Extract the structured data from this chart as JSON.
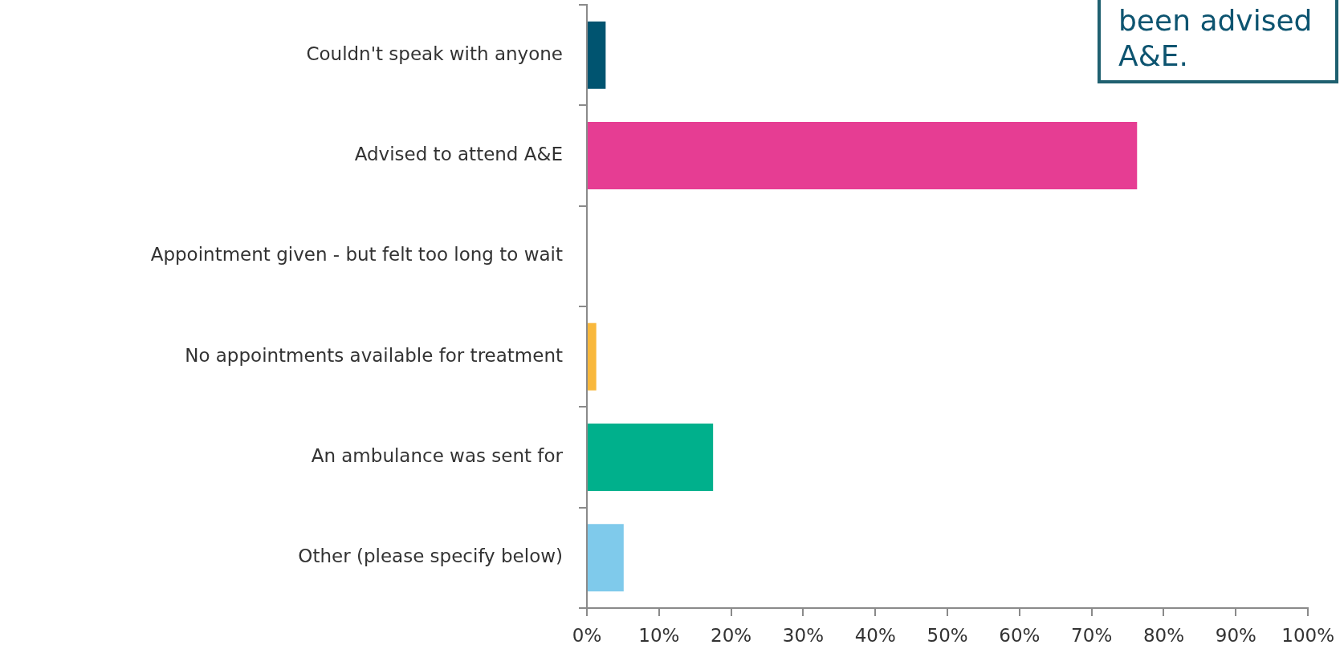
{
  "chart_data": {
    "type": "bar",
    "orientation": "horizontal",
    "categories": [
      "Couldn't speak with anyone",
      "Advised to attend A&E",
      "Appointment given - but felt too long to wait",
      "No appointments available for treatment",
      "An ambulance was sent for",
      "Other (please specify below)"
    ],
    "values": [
      2.6,
      76.3,
      0,
      1.3,
      17.5,
      5.1
    ],
    "colors": [
      "#005470",
      "#e63d93",
      "#8c8c8c",
      "#f9b83c",
      "#00b08c",
      "#7fcaeb"
    ],
    "xlim": [
      0,
      100
    ],
    "xticks": [
      {
        "value": 0,
        "label": "0%"
      },
      {
        "value": 10,
        "label": "10%"
      },
      {
        "value": 20,
        "label": "20%"
      },
      {
        "value": 30,
        "label": "30%"
      },
      {
        "value": 40,
        "label": "40%"
      },
      {
        "value": 50,
        "label": "50%"
      },
      {
        "value": 60,
        "label": "60%"
      },
      {
        "value": 70,
        "label": "70%"
      },
      {
        "value": 80,
        "label": "80%"
      },
      {
        "value": 90,
        "label": "90%"
      },
      {
        "value": 100,
        "label": "100%"
      }
    ],
    "grid": false,
    "annotations": [
      "been advised\nA&E."
    ]
  }
}
